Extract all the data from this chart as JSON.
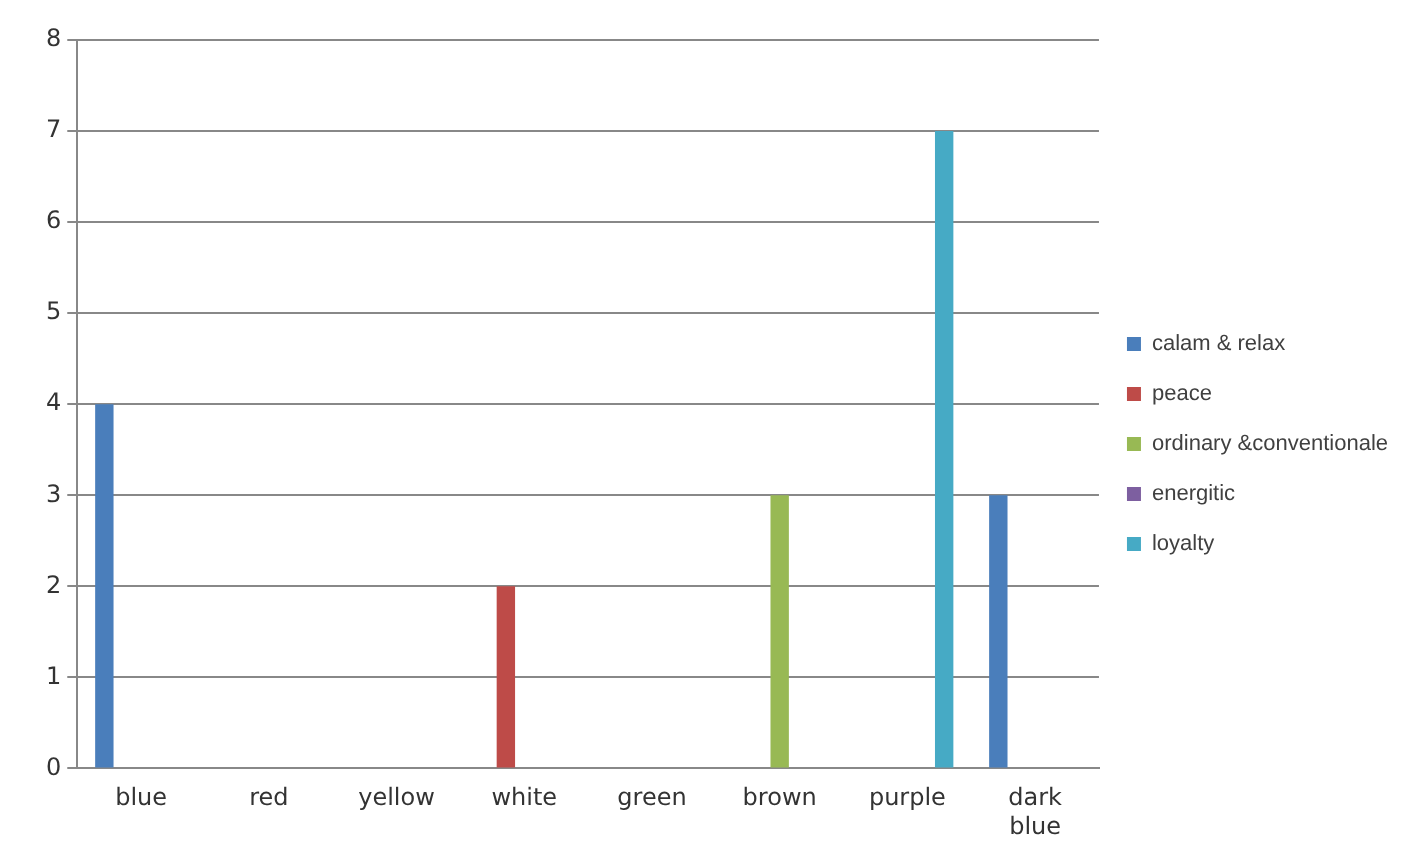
{
  "chart_data": {
    "type": "bar",
    "categories": [
      "blue",
      "red",
      "yellow",
      "white",
      "green",
      "brown",
      "purple",
      "dark blue"
    ],
    "series": [
      {
        "name": "calam & relax",
        "color": "#4a7ebb",
        "values": [
          4,
          0,
          0,
          0,
          0,
          0,
          0,
          3
        ]
      },
      {
        "name": "peace",
        "color": "#be4b48",
        "values": [
          0,
          0,
          0,
          2,
          0,
          0,
          0,
          0
        ]
      },
      {
        "name": "ordinary &conventionale",
        "color": "#98b954",
        "values": [
          0,
          0,
          0,
          0,
          0,
          3,
          0,
          0
        ]
      },
      {
        "name": "energitic",
        "color": "#7d5fa0",
        "values": [
          0,
          0,
          0,
          0,
          0,
          0,
          0,
          0
        ]
      },
      {
        "name": "loyalty",
        "color": "#46aac5",
        "values": [
          0,
          0,
          0,
          0,
          0,
          0,
          7,
          0
        ]
      }
    ],
    "ylim": [
      0,
      8
    ],
    "yticks": [
      0,
      1,
      2,
      3,
      4,
      5,
      6,
      7,
      8
    ],
    "grid": "y",
    "legend": "right"
  }
}
